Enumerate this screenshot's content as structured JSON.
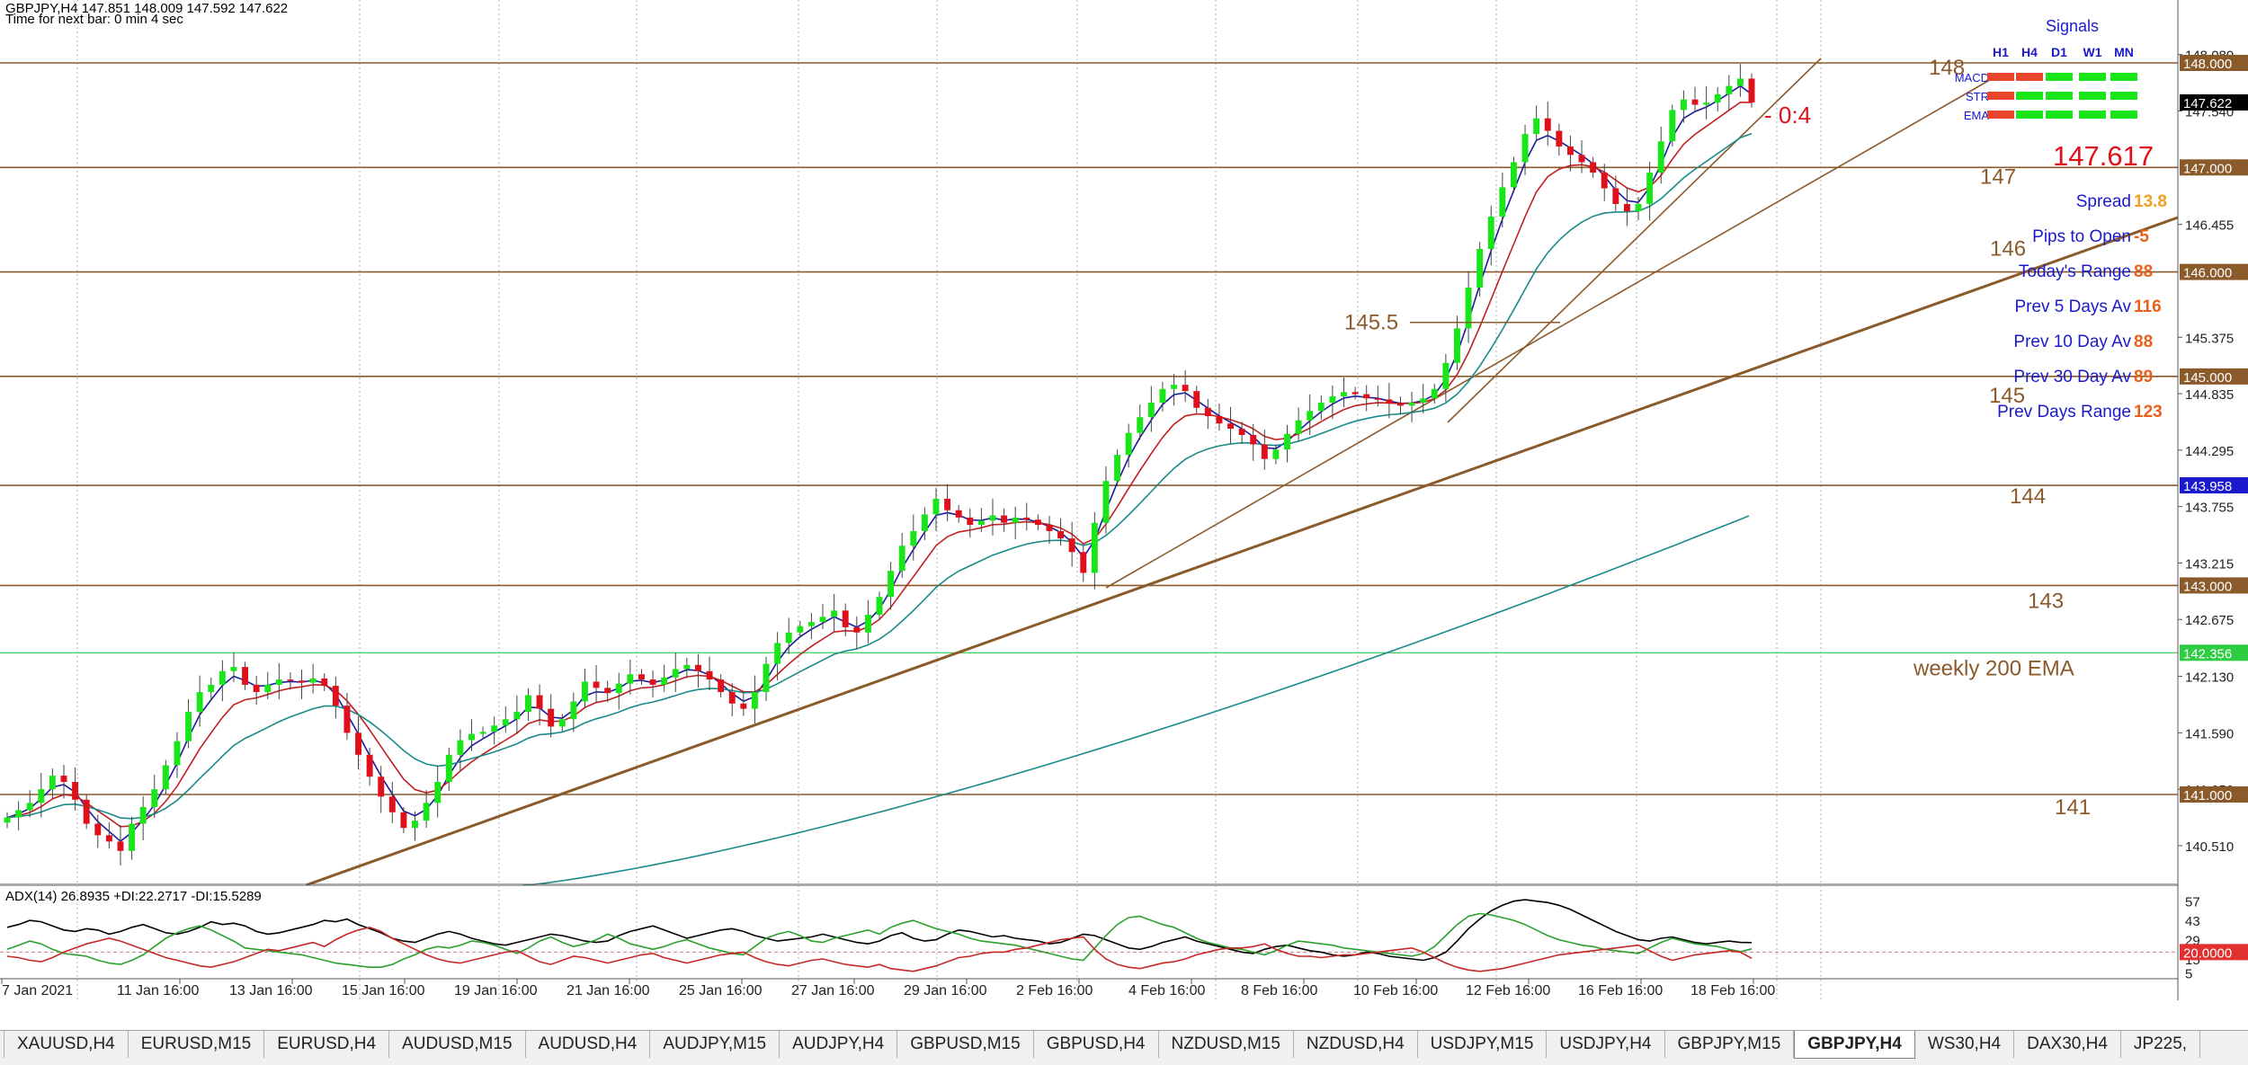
{
  "header": {
    "title": "GBPJPY,H4  147.851 148.009 147.592 147.622",
    "timer": "Time for next bar: 0 min 4 sec"
  },
  "chart_data": [
    {
      "type": "candlestick",
      "symbol": "GBPJPY",
      "timeframe": "H4",
      "ylim": [
        140.1,
        148.55
      ],
      "grid": true,
      "price_labels": [
        "148.080",
        "147.540",
        "146.455",
        "145.375",
        "144.835",
        "144.295",
        "143.755",
        "143.215",
        "142.675",
        "142.130",
        "141.590",
        "141.050",
        "140.510"
      ],
      "x_labels": [
        "7 Jan 2021",
        "11 Jan 16:00",
        "13 Jan 16:00",
        "15 Jan 16:00",
        "19 Jan 16:00",
        "21 Jan 16:00",
        "25 Jan 16:00",
        "27 Jan 16:00",
        "29 Jan 16:00",
        "2 Feb 16:00",
        "4 Feb 16:00",
        "8 Feb 16:00",
        "10 Feb 16:00",
        "12 Feb 16:00",
        "16 Feb 16:00",
        "18 Feb 16:00"
      ],
      "levels": [
        {
          "value": 148.0,
          "tag": "148.000",
          "label": "148"
        },
        {
          "value": 147.0,
          "tag": "147.000",
          "label": "147"
        },
        {
          "value": 146.0,
          "tag": "146.000",
          "label": "146"
        },
        {
          "value": 145.0,
          "tag": "145.000",
          "label": "145"
        },
        {
          "value": 143.958,
          "tag": "143.958",
          "label": "144"
        },
        {
          "value": 143.0,
          "tag": "143.000",
          "label": "143"
        },
        {
          "value": 141.0,
          "tag": "141.000",
          "label": "141"
        }
      ],
      "bid_tag": "147.622",
      "ema200_tag": "142.356",
      "ema200_label": "weekly 200 EMA",
      "mark_145_5": "145.5",
      "countdown": "- 0:4",
      "current_price": "147.617",
      "closes": [
        140.78,
        140.85,
        140.92,
        141.05,
        141.18,
        141.12,
        140.95,
        140.72,
        140.61,
        140.55,
        140.46,
        140.72,
        140.88,
        141.05,
        141.28,
        141.51,
        141.79,
        141.98,
        142.05,
        142.18,
        142.22,
        142.05,
        141.98,
        142.05,
        142.1,
        142.09,
        142.07,
        142.11,
        142.04,
        141.85,
        141.59,
        141.38,
        141.17,
        140.98,
        140.83,
        140.68,
        140.75,
        140.92,
        141.12,
        141.38,
        141.52,
        141.58,
        141.6,
        141.66,
        141.72,
        141.79,
        141.95,
        141.82,
        141.65,
        141.72,
        141.89,
        142.08,
        142.02,
        141.97,
        142.06,
        142.15,
        142.1,
        142.05,
        142.12,
        142.2,
        142.24,
        142.18,
        142.1,
        141.98,
        141.87,
        141.82,
        141.98,
        142.25,
        142.45,
        142.55,
        142.61,
        142.65,
        142.7,
        142.76,
        142.6,
        142.55,
        142.72,
        142.89,
        143.14,
        143.38,
        143.52,
        143.68,
        143.83,
        143.72,
        143.65,
        143.58,
        143.62,
        143.67,
        143.6,
        143.65,
        143.63,
        143.58,
        143.52,
        143.45,
        143.32,
        143.12,
        143.6,
        144.0,
        144.25,
        144.46,
        144.61,
        144.75,
        144.88,
        144.92,
        144.86,
        144.7,
        144.62,
        144.55,
        144.5,
        144.44,
        144.35,
        144.21,
        144.3,
        144.45,
        144.58,
        144.67,
        144.75,
        144.81,
        144.85,
        144.83,
        144.79,
        144.78,
        144.74,
        144.72,
        144.75,
        144.79,
        144.88,
        145.13,
        145.46,
        145.85,
        146.22,
        146.53,
        146.81,
        147.05,
        147.32,
        147.47,
        147.35,
        147.2,
        147.12,
        147.05,
        146.95,
        146.8,
        146.65,
        146.58,
        146.65,
        146.95,
        147.25,
        147.55,
        147.65,
        147.6,
        147.62,
        147.7,
        147.78,
        147.85,
        147.622
      ]
    },
    {
      "type": "line",
      "indicator": "ADX(14)",
      "legend": "ADX(14) 26.8935 +DI:22.2717 -DI:15.5289",
      "ylabels": [
        "57",
        "43",
        "29",
        "15",
        "5"
      ],
      "level_tag": "20.0000",
      "level": 20,
      "ylim": [
        0,
        62
      ],
      "series": [
        {
          "name": "ADX",
          "color": "#000000",
          "values": [
            38,
            40,
            43,
            42,
            39,
            36,
            35,
            37,
            36,
            33,
            35,
            38,
            40,
            37,
            34,
            33,
            35,
            38,
            42,
            40,
            41,
            39,
            35,
            33,
            34,
            36,
            38,
            40,
            43,
            42,
            44,
            40,
            37,
            34,
            30,
            28,
            27,
            30,
            33,
            35,
            33,
            30,
            28,
            26,
            25,
            27,
            29,
            31,
            33,
            32,
            30,
            28,
            27,
            28,
            32,
            35,
            37,
            39,
            36,
            33,
            30,
            32,
            34,
            36,
            37,
            35,
            32,
            30,
            28,
            29,
            30,
            31,
            33,
            31,
            29,
            27,
            26,
            28,
            32,
            34,
            30,
            28,
            29,
            33,
            36,
            35,
            33,
            31,
            32,
            30,
            29,
            28,
            26,
            27,
            30,
            33,
            32,
            29,
            26,
            23,
            22,
            24,
            27,
            29,
            31,
            28,
            26,
            24,
            22,
            20,
            19,
            22,
            24,
            25,
            23,
            21,
            20,
            18,
            17,
            18,
            20,
            19,
            17,
            16,
            15,
            14,
            16,
            20,
            28,
            37,
            44,
            50,
            54,
            57,
            58,
            57,
            56,
            54,
            51,
            47,
            43,
            39,
            35,
            32,
            29,
            28,
            30,
            31,
            29,
            27,
            26,
            27,
            28,
            27,
            26.9
          ]
        },
        {
          "name": "+DI",
          "color": "#2ca02c",
          "values": [
            22,
            25,
            28,
            26,
            22,
            19,
            18,
            17,
            14,
            12,
            11,
            14,
            18,
            24,
            30,
            34,
            37,
            39,
            36,
            32,
            28,
            23,
            22,
            21,
            20,
            19,
            18,
            16,
            14,
            12,
            11,
            10,
            9,
            9,
            11,
            15,
            18,
            22,
            24,
            23,
            25,
            28,
            27,
            25,
            22,
            19,
            23,
            28,
            31,
            27,
            24,
            26,
            29,
            33,
            30,
            26,
            24,
            22,
            24,
            27,
            29,
            26,
            23,
            21,
            19,
            18,
            24,
            30,
            33,
            35,
            32,
            28,
            27,
            30,
            32,
            34,
            36,
            33,
            38,
            41,
            43,
            40,
            37,
            35,
            33,
            30,
            28,
            27,
            26,
            25,
            23,
            21,
            19,
            17,
            15,
            14,
            23,
            32,
            40,
            45,
            46,
            43,
            40,
            38,
            34,
            30,
            27,
            25,
            23,
            22,
            20,
            18,
            21,
            25,
            28,
            27,
            26,
            25,
            23,
            22,
            21,
            20,
            19,
            18,
            17,
            19,
            24,
            32,
            40,
            46,
            48,
            47,
            45,
            43,
            40,
            36,
            32,
            29,
            27,
            25,
            24,
            22,
            21,
            20,
            19,
            23,
            27,
            30,
            28,
            26,
            25,
            24,
            22,
            20.3,
            22.3
          ]
        },
        {
          "name": "-DI",
          "color": "#c62828",
          "values": [
            17,
            16,
            14,
            13,
            16,
            20,
            23,
            26,
            28,
            30,
            28,
            25,
            22,
            19,
            16,
            14,
            12,
            10,
            9,
            11,
            13,
            16,
            19,
            22,
            21,
            23,
            25,
            27,
            24,
            29,
            33,
            36,
            38,
            35,
            30,
            26,
            22,
            18,
            15,
            13,
            12,
            14,
            16,
            18,
            20,
            21,
            17,
            13,
            11,
            14,
            17,
            16,
            14,
            12,
            14,
            16,
            18,
            19,
            16,
            14,
            12,
            14,
            16,
            18,
            19,
            20,
            16,
            13,
            11,
            10,
            12,
            14,
            15,
            13,
            11,
            10,
            9,
            11,
            8,
            7,
            6,
            8,
            10,
            13,
            16,
            17,
            19,
            20,
            20,
            22,
            23,
            25,
            27,
            29,
            30,
            31,
            22,
            15,
            11,
            9,
            8,
            10,
            12,
            13,
            15,
            18,
            20,
            22,
            23,
            23,
            24,
            26,
            22,
            19,
            17,
            17,
            16,
            17,
            18,
            18,
            19,
            20,
            21,
            22,
            23,
            20,
            16,
            12,
            9,
            7,
            6,
            7,
            8,
            10,
            12,
            14,
            16,
            18,
            19,
            20,
            21,
            22,
            23,
            24,
            25,
            21,
            17,
            14,
            16,
            18,
            19,
            20,
            21,
            20,
            15.5
          ]
        }
      ]
    }
  ],
  "signals_panel": {
    "title": "Signals",
    "columns": [
      "H1",
      "H4",
      "D1",
      "W1",
      "MN"
    ],
    "rows": [
      {
        "label": "MACD",
        "states": [
          "red",
          "red",
          "green",
          "green",
          "green"
        ]
      },
      {
        "label": "STR",
        "states": [
          "red",
          "green",
          "green",
          "green",
          "green"
        ]
      },
      {
        "label": "EMA",
        "states": [
          "red",
          "green",
          "green",
          "green",
          "green"
        ]
      }
    ],
    "colors": {
      "red": "#e8452c",
      "green": "#19e619"
    }
  },
  "stats": [
    {
      "label": "Spread",
      "value": "13.8",
      "value_color": "#f0a020"
    },
    {
      "label": "Pips to Open",
      "value": "-5",
      "value_color": "#e8601c"
    },
    {
      "label": "Today's Range",
      "value": "88",
      "value_color": "#e8601c"
    },
    {
      "label": "Prev 5 Days Av",
      "value": "116",
      "value_color": "#e8601c"
    },
    {
      "label": "Prev 10 Day Av",
      "value": "88",
      "value_color": "#e8601c"
    },
    {
      "label": "Prev 30 Day Av",
      "value": "89",
      "value_color": "#e8601c"
    },
    {
      "label": "Prev Days Range",
      "value": "123",
      "value_color": "#e8601c"
    }
  ],
  "tabs": [
    {
      "label": "XAUUSD,H4"
    },
    {
      "label": "EURUSD,M15"
    },
    {
      "label": "EURUSD,H4"
    },
    {
      "label": "AUDUSD,M15"
    },
    {
      "label": "AUDUSD,H4"
    },
    {
      "label": "AUDJPY,M15"
    },
    {
      "label": "AUDJPY,H4"
    },
    {
      "label": "GBPUSD,M15"
    },
    {
      "label": "GBPUSD,H4"
    },
    {
      "label": "NZDUSD,M15"
    },
    {
      "label": "NZDUSD,H4"
    },
    {
      "label": "USDJPY,M15"
    },
    {
      "label": "USDJPY,H4"
    },
    {
      "label": "GBPJPY,M15"
    },
    {
      "label": "GBPJPY,H4",
      "active": true
    },
    {
      "label": "WS30,H4"
    },
    {
      "label": "DAX30,H4"
    },
    {
      "label": "JP225,"
    }
  ],
  "colors": {
    "level": "#8b5a2b",
    "trend": "#8b5a2b",
    "bull": "#19e619",
    "bear": "#e0101a",
    "ema_fast": "#1a1aa0",
    "ema_mid": "#c02020",
    "ema_slow": "#1a8a8a",
    "ema200": "#1a8a8a",
    "level_label": "#8b5a2b",
    "price_red": "#e0101a",
    "stat_label": "#1a1acc"
  }
}
